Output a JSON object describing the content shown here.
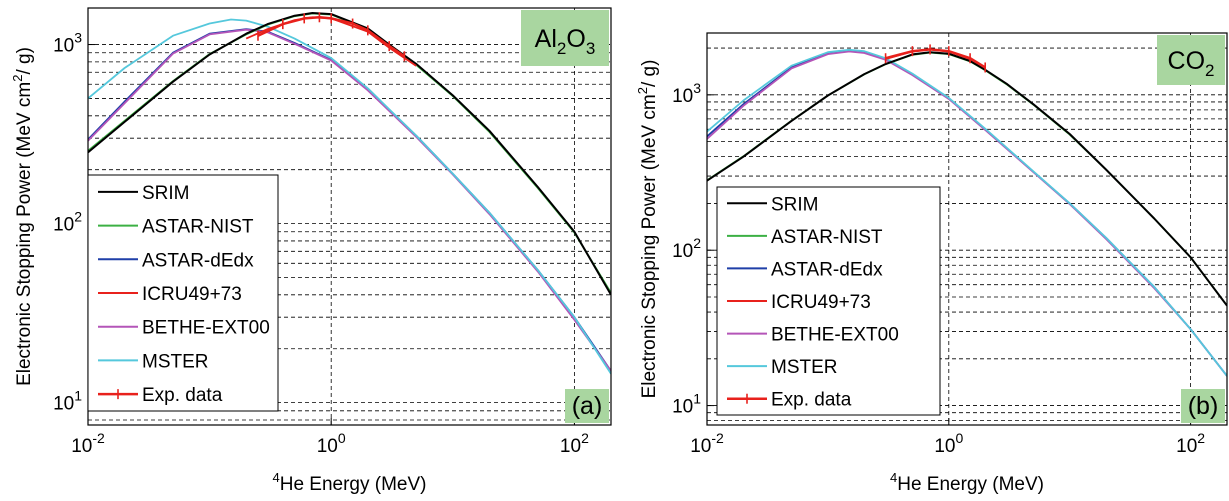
{
  "chart_data": [
    {
      "type": "line",
      "xscale": "log",
      "yscale": "log",
      "xlim": [
        0.01,
        200
      ],
      "ylim": [
        7.5,
        1600
      ],
      "xlabel": "⁴He Energy (MeV)",
      "ylabel": "Electronic Stopping Power (MeV cm²/ g)",
      "xticks": [
        "10⁻²",
        "10⁰",
        "10²"
      ],
      "yticks": [
        "10¹",
        "10²",
        "10³"
      ],
      "material": "Al₂O₃",
      "panel_label": "(a)",
      "legend_position": "bottom-left",
      "grid": true,
      "series": [
        {
          "name": "SRIM",
          "color": "#000000",
          "points": [
            [
              0.01,
              250
            ],
            [
              0.02,
              370
            ],
            [
              0.05,
              620
            ],
            [
              0.1,
              880
            ],
            [
              0.2,
              1150
            ],
            [
              0.3,
              1300
            ],
            [
              0.5,
              1450
            ],
            [
              0.7,
              1500
            ],
            [
              1,
              1480
            ],
            [
              2,
              1230
            ],
            [
              3,
              1000
            ],
            [
              5,
              780
            ],
            [
              10,
              520
            ],
            [
              20,
              330
            ],
            [
              50,
              160
            ],
            [
              100,
              90
            ],
            [
              200,
              40
            ]
          ]
        },
        {
          "name": "ASTAR-NIST",
          "color": "#3cb044",
          "points": [
            [
              0.01,
              255
            ],
            [
              0.02,
              375
            ],
            [
              0.05,
              625
            ],
            [
              0.1,
              885
            ],
            [
              0.2,
              1140
            ],
            [
              0.3,
              1290
            ],
            [
              0.5,
              1440
            ],
            [
              0.7,
              1490
            ],
            [
              1,
              1470
            ],
            [
              2,
              1220
            ],
            [
              3,
              990
            ],
            [
              5,
              770
            ],
            [
              10,
              515
            ],
            [
              20,
              325
            ],
            [
              50,
              158
            ],
            [
              100,
              89
            ],
            [
              200,
              41
            ]
          ]
        },
        {
          "name": "ASTAR-dEdx",
          "color": "#1f3fa8",
          "points": [
            [
              0.01,
              295
            ],
            [
              0.02,
              480
            ],
            [
              0.05,
              900
            ],
            [
              0.1,
              1150
            ],
            [
              0.2,
              1220
            ],
            [
              0.3,
              1180
            ],
            [
              0.5,
              1020
            ],
            [
              1,
              820
            ],
            [
              2,
              560
            ],
            [
              5,
              310
            ],
            [
              10,
              190
            ],
            [
              20,
              115
            ],
            [
              50,
              55
            ],
            [
              100,
              30
            ],
            [
              200,
              15
            ]
          ]
        },
        {
          "name": "ICRU49+73",
          "color": "#e8211c",
          "points": [
            [
              0.2,
              1080
            ],
            [
              0.3,
              1220
            ],
            [
              0.5,
              1370
            ],
            [
              0.7,
              1420
            ],
            [
              1,
              1400
            ],
            [
              2,
              1180
            ],
            [
              3,
              960
            ],
            [
              5,
              760
            ]
          ]
        },
        {
          "name": "BETHE-EXT00",
          "color": "#b455b8",
          "points": [
            [
              0.01,
              290
            ],
            [
              0.02,
              470
            ],
            [
              0.05,
              890
            ],
            [
              0.1,
              1140
            ],
            [
              0.2,
              1210
            ],
            [
              0.3,
              1170
            ],
            [
              0.5,
              1010
            ],
            [
              1,
              815
            ],
            [
              2,
              555
            ],
            [
              5,
              305
            ],
            [
              10,
              188
            ],
            [
              20,
              113
            ],
            [
              50,
              54
            ],
            [
              100,
              29
            ],
            [
              200,
              15
            ]
          ]
        },
        {
          "name": "MSTER",
          "color": "#55c8dc",
          "points": [
            [
              0.01,
              500
            ],
            [
              0.02,
              740
            ],
            [
              0.05,
              1120
            ],
            [
              0.1,
              1310
            ],
            [
              0.15,
              1380
            ],
            [
              0.2,
              1360
            ],
            [
              0.3,
              1260
            ],
            [
              0.5,
              1080
            ],
            [
              1,
              840
            ],
            [
              2,
              570
            ],
            [
              5,
              310
            ],
            [
              10,
              190
            ],
            [
              20,
              115
            ],
            [
              50,
              55
            ],
            [
              100,
              30
            ],
            [
              200,
              14.5
            ]
          ]
        },
        {
          "name": "Exp. data",
          "color": "#e8211c",
          "points": [
            [
              0.25,
              1120
            ],
            [
              0.4,
              1300
            ],
            [
              0.6,
              1400
            ],
            [
              0.8,
              1420
            ],
            [
              1,
              1400
            ],
            [
              1.5,
              1310
            ],
            [
              2,
              1200
            ],
            [
              3,
              980
            ],
            [
              4,
              860
            ]
          ]
        }
      ]
    },
    {
      "type": "line",
      "xscale": "log",
      "yscale": "log",
      "xlim": [
        0.01,
        200
      ],
      "ylim": [
        7.5,
        2500
      ],
      "xlabel": "⁴He Energy (MeV)",
      "ylabel": "Electronic Stopping Power (MeV cm²/ g)",
      "xticks": [
        "10⁻²",
        "10⁰",
        "10²"
      ],
      "yticks": [
        "10¹",
        "10²",
        "10³"
      ],
      "material": "CO₂",
      "panel_label": "(b)",
      "legend_position": "bottom-left",
      "grid": true,
      "series": [
        {
          "name": "SRIM",
          "color": "#000000",
          "points": [
            [
              0.01,
              280
            ],
            [
              0.02,
              400
            ],
            [
              0.05,
              680
            ],
            [
              0.1,
              990
            ],
            [
              0.2,
              1360
            ],
            [
              0.3,
              1580
            ],
            [
              0.5,
              1820
            ],
            [
              0.7,
              1880
            ],
            [
              1,
              1840
            ],
            [
              1.5,
              1650
            ],
            [
              2,
              1450
            ],
            [
              3,
              1180
            ],
            [
              5,
              870
            ],
            [
              10,
              560
            ],
            [
              20,
              330
            ],
            [
              50,
              160
            ],
            [
              100,
              90
            ],
            [
              200,
              44
            ]
          ]
        },
        {
          "name": "ASTAR-NIST",
          "color": "#3cb044",
          "points": [
            [
              0.01,
              282
            ],
            [
              0.02,
              402
            ],
            [
              0.05,
              682
            ],
            [
              0.1,
              990
            ],
            [
              0.2,
              1355
            ],
            [
              0.3,
              1575
            ],
            [
              0.5,
              1810
            ],
            [
              0.7,
              1870
            ],
            [
              1,
              1830
            ],
            [
              1.5,
              1640
            ],
            [
              2,
              1440
            ],
            [
              3,
              1170
            ],
            [
              5,
              865
            ],
            [
              10,
              555
            ],
            [
              20,
              330
            ],
            [
              50,
              160
            ],
            [
              100,
              90
            ],
            [
              200,
              44
            ]
          ]
        },
        {
          "name": "ASTAR-dEdx",
          "color": "#1f3fa8",
          "points": [
            [
              0.01,
              540
            ],
            [
              0.02,
              870
            ],
            [
              0.05,
              1500
            ],
            [
              0.1,
              1850
            ],
            [
              0.15,
              1920
            ],
            [
              0.2,
              1880
            ],
            [
              0.3,
              1700
            ],
            [
              0.5,
              1360
            ],
            [
              1,
              950
            ],
            [
              2,
              600
            ],
            [
              5,
              320
            ],
            [
              10,
              200
            ],
            [
              20,
              120
            ],
            [
              50,
              58
            ],
            [
              100,
              31
            ],
            [
              200,
              15.5
            ]
          ]
        },
        {
          "name": "ICRU49+73",
          "color": "#e8211c",
          "points": [
            [
              0.3,
              1700
            ],
            [
              0.5,
              1900
            ],
            [
              0.7,
              1960
            ],
            [
              1,
              1900
            ],
            [
              1.5,
              1700
            ],
            [
              2,
              1500
            ]
          ]
        },
        {
          "name": "BETHE-EXT00",
          "color": "#b455b8",
          "points": [
            [
              0.01,
              520
            ],
            [
              0.02,
              850
            ],
            [
              0.05,
              1480
            ],
            [
              0.1,
              1830
            ],
            [
              0.15,
              1900
            ],
            [
              0.2,
              1860
            ],
            [
              0.3,
              1680
            ],
            [
              0.5,
              1340
            ],
            [
              1,
              940
            ],
            [
              2,
              595
            ],
            [
              5,
              318
            ],
            [
              10,
              198
            ],
            [
              20,
              118
            ],
            [
              50,
              57
            ],
            [
              100,
              31
            ],
            [
              200,
              15.5
            ]
          ]
        },
        {
          "name": "MSTER",
          "color": "#55c8dc",
          "points": [
            [
              0.01,
              580
            ],
            [
              0.02,
              920
            ],
            [
              0.05,
              1540
            ],
            [
              0.1,
              1880
            ],
            [
              0.15,
              1950
            ],
            [
              0.2,
              1910
            ],
            [
              0.3,
              1720
            ],
            [
              0.5,
              1370
            ],
            [
              1,
              955
            ],
            [
              2,
              605
            ],
            [
              5,
              322
            ],
            [
              10,
              200
            ],
            [
              20,
              120
            ],
            [
              50,
              58
            ],
            [
              100,
              31
            ],
            [
              200,
              15.5
            ]
          ]
        },
        {
          "name": "Exp. data",
          "color": "#e8211c",
          "points": [
            [
              0.3,
              1720
            ],
            [
              0.5,
              1910
            ],
            [
              0.7,
              1960
            ],
            [
              1,
              1910
            ],
            [
              1.5,
              1720
            ],
            [
              2,
              1500
            ]
          ]
        }
      ]
    }
  ]
}
